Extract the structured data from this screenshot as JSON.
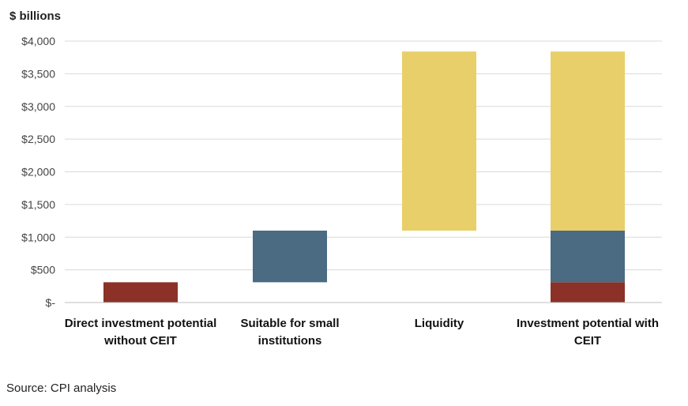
{
  "chart_data": {
    "type": "bar",
    "stacked": "waterfall",
    "title": "",
    "ylabel": "$ billions",
    "xlabel": "",
    "ylim": [
      0,
      4000
    ],
    "yticks": [
      0,
      500,
      1000,
      1500,
      2000,
      2500,
      3000,
      3500,
      4000
    ],
    "ytick_labels": [
      "$-",
      "$500",
      "$1,000",
      "$1,500",
      "$2,000",
      "$2,500",
      "$3,000",
      "$3,500",
      "$4,000"
    ],
    "grid": true,
    "legend": "none",
    "categories": [
      [
        "Direct investment potential",
        "without CEIT"
      ],
      [
        "Suitable for small",
        "institutions"
      ],
      [
        "Liquidity"
      ],
      [
        "Investment potential with",
        "CEIT"
      ]
    ],
    "segments": [
      {
        "category": 0,
        "from": 0,
        "to": 310,
        "color": "#8b3128"
      },
      {
        "category": 1,
        "from": 310,
        "to": 1100,
        "color": "#4a6b82"
      },
      {
        "category": 2,
        "from": 1100,
        "to": 3840,
        "color": "#e8cf69"
      },
      {
        "category": 3,
        "from": 0,
        "to": 310,
        "color": "#8b3128"
      },
      {
        "category": 3,
        "from": 310,
        "to": 1100,
        "color": "#4a6b82"
      },
      {
        "category": 3,
        "from": 1100,
        "to": 3840,
        "color": "#e8cf69"
      }
    ]
  },
  "unit_label": "$ billions",
  "source": "Source: CPI analysis"
}
